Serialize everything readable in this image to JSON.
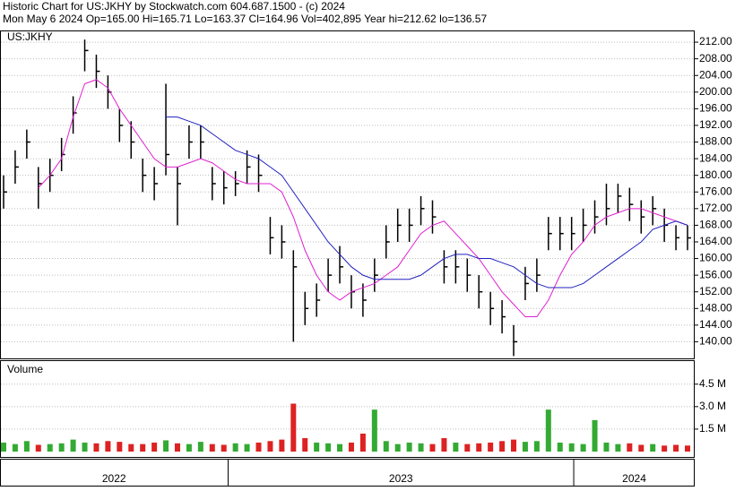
{
  "header": {
    "line1": "Historic Chart for US:JKHY by Stockwatch.com 604.687.1500 - (c) 2024",
    "line2": "Mon May  6 2024  Op=165.00  Hi=165.71  Lo=163.37  Cl=164.96  Vol=402,895  Year hi=212.62  lo=136.57"
  },
  "chart_data": [
    {
      "type": "ohlc",
      "label": "US:JKHY",
      "high": [
        180,
        186,
        191,
        182,
        184,
        189,
        199,
        212.62,
        209,
        204,
        196,
        193,
        184,
        182,
        202,
        182,
        192,
        192,
        182,
        181,
        181,
        186,
        185,
        170,
        168,
        162,
        152,
        154,
        160,
        163,
        156,
        154,
        160,
        168,
        172,
        172,
        175,
        174,
        162,
        162,
        160,
        156,
        152,
        150,
        144,
        158,
        160,
        170,
        170,
        170,
        172,
        174,
        178,
        178,
        177,
        174,
        175,
        172,
        168,
        168
      ],
      "low": [
        172,
        178,
        184,
        172,
        176,
        181,
        190,
        205,
        201,
        196,
        188,
        184,
        176,
        174,
        180,
        168,
        184,
        184,
        174,
        173,
        175,
        178,
        176,
        161,
        160,
        140,
        144,
        146,
        152,
        154,
        148,
        146,
        152,
        160,
        164,
        164,
        168,
        166,
        154,
        154,
        152,
        148,
        144,
        142,
        136.57,
        150,
        152,
        162,
        162,
        162,
        164,
        166,
        168,
        171,
        169,
        166,
        168,
        164,
        162,
        162
      ],
      "close": [
        176,
        182,
        188,
        178,
        180,
        185,
        195,
        210,
        205,
        200,
        192,
        188,
        180,
        178,
        185,
        178,
        188,
        188,
        178,
        177,
        178,
        182,
        180,
        165,
        164,
        158,
        148,
        150,
        156,
        158,
        152,
        150,
        156,
        164,
        168,
        168,
        172,
        170,
        158,
        158,
        156,
        152,
        148,
        146,
        140,
        154,
        156,
        166,
        166,
        166,
        168,
        170,
        172,
        175,
        173,
        170,
        172,
        168,
        165,
        164.96
      ],
      "bar_color": "#000000",
      "series": [
        {
          "color": "#e020d0",
          "values": [
            null,
            null,
            null,
            177,
            180,
            184,
            194,
            202,
            203,
            201,
            196,
            192,
            188,
            184,
            182,
            182,
            183,
            184,
            183,
            181,
            179,
            178,
            178,
            178,
            176,
            170,
            162,
            156,
            152,
            150,
            152,
            153,
            154,
            156,
            158,
            162,
            166,
            168,
            169,
            166,
            163,
            160,
            156,
            152,
            149,
            146,
            146,
            150,
            156,
            161,
            164,
            168,
            170,
            171,
            172,
            172,
            171,
            170,
            169,
            168
          ]
        },
        {
          "color": "#2020c0",
          "values": [
            null,
            null,
            null,
            null,
            null,
            null,
            null,
            null,
            null,
            null,
            null,
            null,
            null,
            null,
            194,
            194,
            193,
            192,
            190,
            188,
            186,
            185,
            184,
            182,
            180,
            176,
            172,
            168,
            164,
            161,
            158,
            156,
            155,
            155,
            155,
            155,
            156,
            158,
            160,
            161,
            161,
            160,
            160,
            159,
            158,
            156,
            154,
            153,
            153,
            153,
            154,
            156,
            158,
            160,
            162,
            164,
            167,
            168,
            169,
            168
          ]
        }
      ],
      "ylim": [
        136,
        214.6
      ],
      "yticks": [
        {
          "value": 140,
          "label": "140.00"
        },
        {
          "value": 144,
          "label": "144.00"
        },
        {
          "value": 148,
          "label": "148.00"
        },
        {
          "value": 152,
          "label": "152.00"
        },
        {
          "value": 156,
          "label": "156.00"
        },
        {
          "value": 160,
          "label": "160.00"
        },
        {
          "value": 164,
          "label": "164.00"
        },
        {
          "value": 168,
          "label": "168.00"
        },
        {
          "value": 172,
          "label": "172.00"
        },
        {
          "value": 176,
          "label": "176.00"
        },
        {
          "value": 180,
          "label": "180.00"
        },
        {
          "value": 184,
          "label": "184.00"
        },
        {
          "value": 188,
          "label": "188.00"
        },
        {
          "value": 192,
          "label": "192.00"
        },
        {
          "value": 196,
          "label": "196.00"
        },
        {
          "value": 200,
          "label": "200.00"
        },
        {
          "value": 204,
          "label": "204.00"
        },
        {
          "value": 208,
          "label": "208.00"
        },
        {
          "value": 212,
          "label": "212.00"
        }
      ],
      "grid": true
    },
    {
      "type": "volume",
      "label": "Volume",
      "up_color": "#33aa33",
      "down_color": "#dd2222",
      "values": [
        600000,
        500000,
        700000,
        450000,
        500000,
        550000,
        800000,
        600000,
        550000,
        700000,
        650000,
        500000,
        500000,
        600000,
        750000,
        550000,
        500000,
        650000,
        500000,
        450000,
        550000,
        500000,
        600000,
        700000,
        800000,
        3200000,
        900000,
        600000,
        550000,
        500000,
        600000,
        1200000,
        2800000,
        700000,
        500000,
        600000,
        550000,
        500000,
        900000,
        600000,
        500000,
        550000,
        600000,
        700000,
        800000,
        650000,
        700000,
        2800000,
        600000,
        550000,
        500000,
        2100000,
        600000,
        500000,
        550000,
        450000,
        500000,
        400000,
        450000,
        402895
      ],
      "ylim": [
        0,
        6100000
      ],
      "yticks": [
        {
          "value": 1500000,
          "label": "1.5 M"
        },
        {
          "value": 3000000,
          "label": "3.0 M"
        },
        {
          "value": 4500000,
          "label": "4.5 M"
        }
      ],
      "grid": true
    }
  ],
  "x_axis": {
    "xlim": [
      2022.34,
      2024.35
    ],
    "xticks": [
      2023,
      2024
    ],
    "labels": [
      "2022",
      "2023",
      "2024"
    ]
  }
}
